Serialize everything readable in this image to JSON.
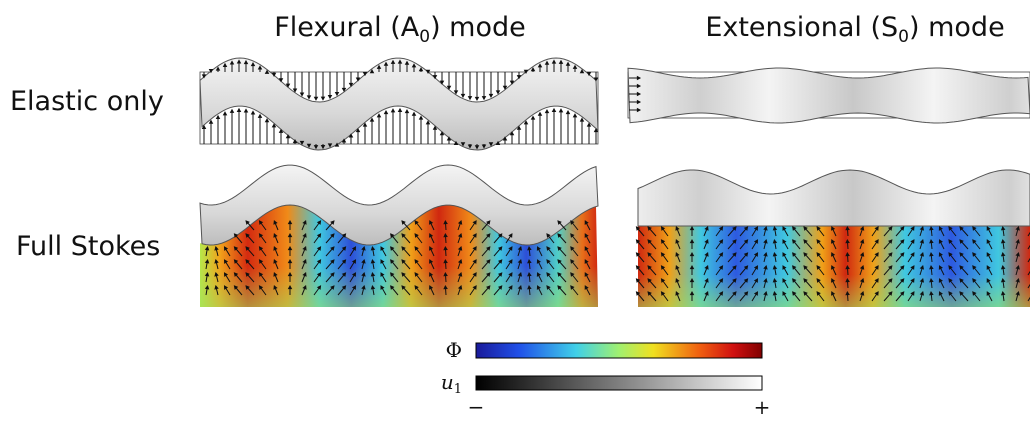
{
  "header": {
    "columns": [
      {
        "text": "Flexural (A",
        "sub": "0",
        "tail": ") mode"
      },
      {
        "text": "Extensional (S",
        "sub": "0",
        "tail": ") mode"
      }
    ]
  },
  "rows": [
    "Elastic only",
    "Full Stokes"
  ],
  "colorbars": {
    "phi": "Φ",
    "u": "u",
    "u_sub": "1",
    "min": "−",
    "max": "+"
  }
}
